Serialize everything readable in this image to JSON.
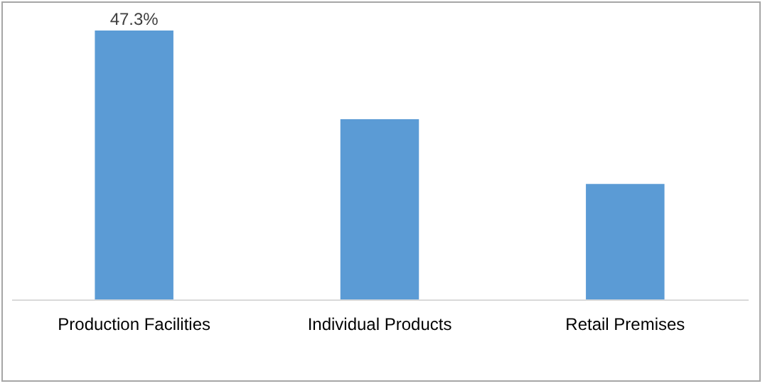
{
  "chart_data": {
    "type": "bar",
    "categories": [
      "Production Facilities",
      "Individual Products",
      "Retail Premises"
    ],
    "values": [
      47.3,
      31.7,
      20.3
    ],
    "value_labels": [
      "47.3%",
      null,
      null
    ],
    "color": "#5b9bd5",
    "grid": false,
    "tick_labels": "x"
  }
}
